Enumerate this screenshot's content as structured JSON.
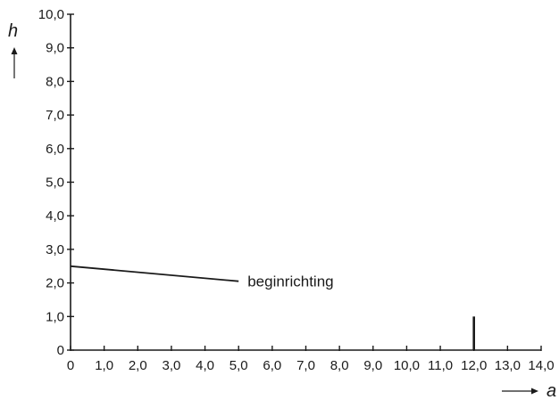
{
  "chart_data": {
    "type": "line",
    "title": "",
    "xlabel": "a",
    "ylabel": "h",
    "xlim": [
      0,
      14
    ],
    "ylim": [
      0,
      10
    ],
    "x_ticks": [
      "0",
      "1,0",
      "2,0",
      "3,0",
      "4,0",
      "5,0",
      "6,0",
      "7,0",
      "8,0",
      "9,0",
      "10,0",
      "11,0",
      "12,0",
      "13,0",
      "14,0"
    ],
    "y_ticks": [
      "0",
      "1,0",
      "2,0",
      "3,0",
      "4,0",
      "5,0",
      "6,0",
      "7,0",
      "8,0",
      "9,0",
      "10,0"
    ],
    "grid": false,
    "series": [
      {
        "x": [
          0,
          5.0
        ],
        "y": [
          2.5,
          2.05
        ],
        "annotation": "beginrichting"
      },
      {
        "x": [
          12.0,
          12.0
        ],
        "y": [
          0,
          1.0
        ]
      }
    ]
  }
}
